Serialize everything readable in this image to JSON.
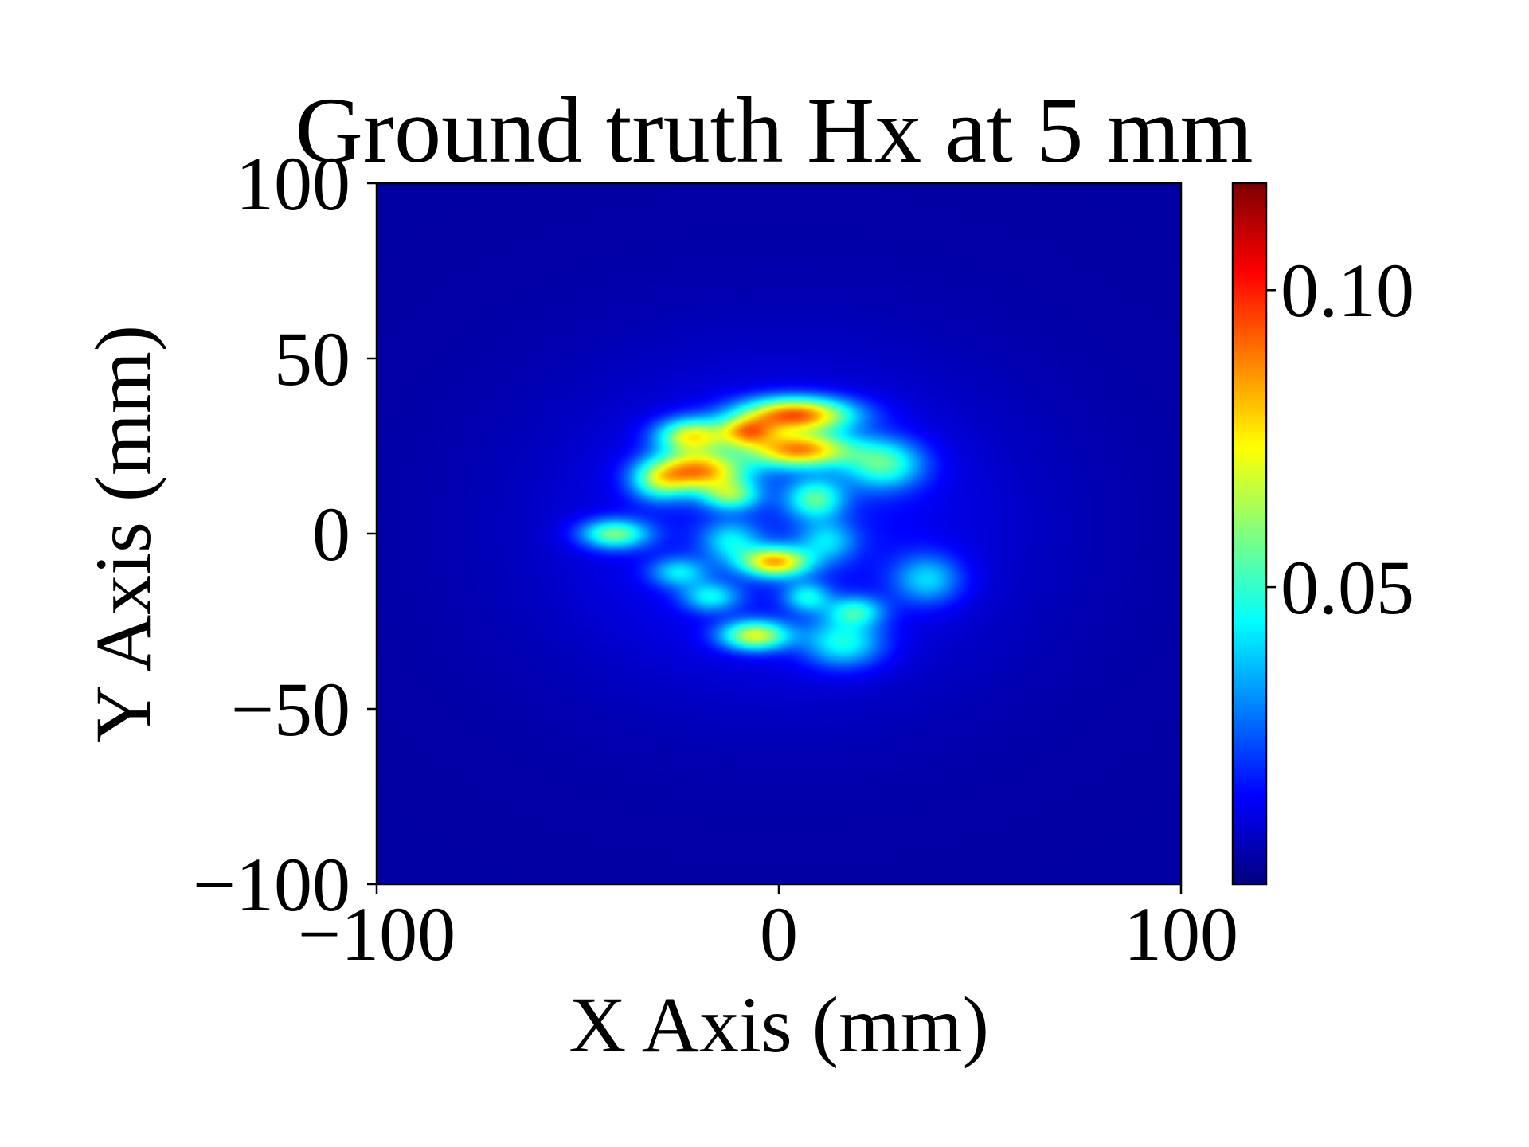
{
  "chart_data": {
    "type": "heatmap",
    "title": "Ground truth Hx at 5 mm",
    "xlabel": "X Axis (mm)",
    "ylabel": "Y Axis (mm)",
    "xlim": [
      -100,
      100
    ],
    "ylim": [
      -100,
      100
    ],
    "x_ticks": [
      -100,
      0,
      100
    ],
    "y_ticks": [
      -100,
      -50,
      0,
      50,
      100
    ],
    "x_tick_labels": [
      "−100",
      "0",
      "100"
    ],
    "y_tick_labels": [
      "−100",
      "−50",
      "0",
      "50",
      "100"
    ],
    "grid": false,
    "colormap": "jet",
    "colorbar": {
      "min": 0.0,
      "max": 0.118,
      "ticks": [
        0.05,
        0.1
      ],
      "tick_labels": [
        "0.05",
        "0.10"
      ]
    },
    "background_level": 0.004,
    "halo": {
      "x": 0,
      "y": 2,
      "sigma_x": 40,
      "sigma_y": 33,
      "amplitude": 0.014
    },
    "hotspots": [
      {
        "x": 4,
        "y": 34,
        "sigma_x": 10,
        "sigma_y": 3.5,
        "value": 0.08
      },
      {
        "x": 5,
        "y": 24,
        "sigma_x": 9,
        "sigma_y": 3.5,
        "value": 0.072
      },
      {
        "x": -20,
        "y": 18,
        "sigma_x": 8,
        "sigma_y": 4,
        "value": 0.07
      },
      {
        "x": -22,
        "y": 28,
        "sigma_x": 6,
        "sigma_y": 3.5,
        "value": 0.058
      },
      {
        "x": -8,
        "y": 29,
        "sigma_x": 5,
        "sigma_y": 3,
        "value": 0.052
      },
      {
        "x": 26,
        "y": 20,
        "sigma_x": 7,
        "sigma_y": 5,
        "value": 0.04
      },
      {
        "x": 9,
        "y": 10,
        "sigma_x": 5,
        "sigma_y": 4,
        "value": 0.038
      },
      {
        "x": -12,
        "y": 11,
        "sigma_x": 5,
        "sigma_y": 3,
        "value": 0.038
      },
      {
        "x": -30,
        "y": 15,
        "sigma_x": 5,
        "sigma_y": 4,
        "value": 0.034
      },
      {
        "x": -41,
        "y": 0,
        "sigma_x": 6,
        "sigma_y": 3,
        "value": 0.046
      },
      {
        "x": -1,
        "y": -8,
        "sigma_x": 6,
        "sigma_y": 3,
        "value": 0.066
      },
      {
        "x": -6,
        "y": -29,
        "sigma_x": 6,
        "sigma_y": 3,
        "value": 0.057
      },
      {
        "x": 16,
        "y": -31,
        "sigma_x": 7,
        "sigma_y": 5,
        "value": 0.035
      },
      {
        "x": 19,
        "y": -22,
        "sigma_x": 5,
        "sigma_y": 3,
        "value": 0.032
      },
      {
        "x": 7,
        "y": -18,
        "sigma_x": 4,
        "sigma_y": 3,
        "value": 0.03
      },
      {
        "x": -17,
        "y": -18,
        "sigma_x": 5,
        "sigma_y": 3,
        "value": 0.03
      },
      {
        "x": -25,
        "y": -11,
        "sigma_x": 5,
        "sigma_y": 3,
        "value": 0.028
      },
      {
        "x": 37,
        "y": -13,
        "sigma_x": 6,
        "sigma_y": 5,
        "value": 0.028
      },
      {
        "x": -12,
        "y": -2,
        "sigma_x": 5,
        "sigma_y": 4,
        "value": 0.026
      },
      {
        "x": 12,
        "y": -2,
        "sigma_x": 5,
        "sigma_y": 4,
        "value": 0.024
      }
    ]
  }
}
